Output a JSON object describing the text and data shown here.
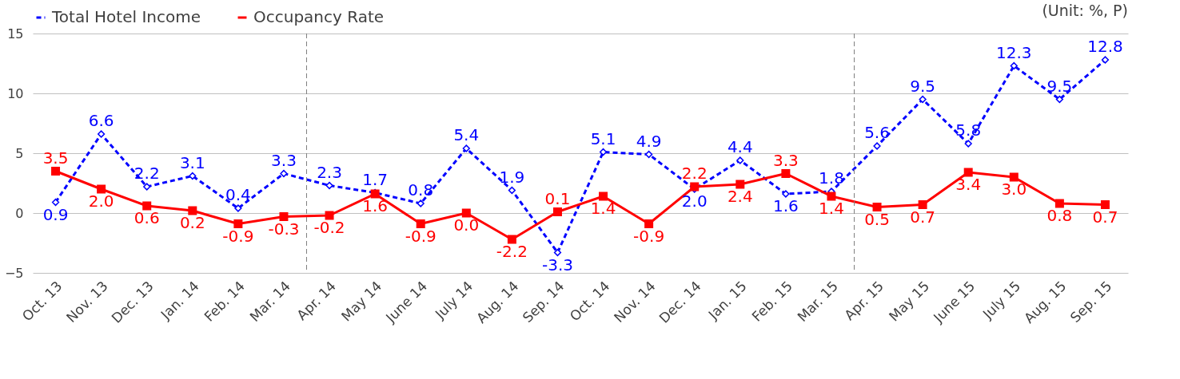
{
  "chart_data": {
    "type": "line",
    "categories": [
      "Oct. 13",
      "Nov. 13",
      "Dec. 13",
      "Jan. 14",
      "Feb. 14",
      "Mar. 14",
      "Apr. 14",
      "May 14",
      "June 14",
      "July 14",
      "Aug. 14",
      "Sep. 14",
      "Oct. 14",
      "Nov. 14",
      "Dec. 14",
      "Jan. 15",
      "Feb. 15",
      "Mar. 15",
      "Apr. 15",
      "May 15",
      "June 15",
      "July 15",
      "Aug. 15",
      "Sep. 15"
    ],
    "series": [
      {
        "name": "Total Hotel Income",
        "color": "#0000ff",
        "marker": "diamond",
        "line_style": "dashed",
        "values": [
          0.9,
          6.6,
          2.2,
          3.1,
          0.4,
          3.3,
          2.3,
          1.7,
          0.8,
          5.4,
          1.9,
          -3.3,
          5.1,
          4.9,
          2.0,
          4.4,
          1.6,
          1.8,
          5.6,
          9.5,
          5.8,
          12.3,
          9.5,
          12.8
        ],
        "value_labels": [
          "0.9",
          "6.6",
          "2.2",
          "3.1",
          "0.4",
          "3.3",
          "2.3",
          "1.7",
          "0.8",
          "5.4",
          "1.9",
          "-3.3",
          "5.1",
          "4.9",
          "2.0",
          "4.4",
          "1.6",
          "1.8",
          "5.6",
          "9.5",
          "5.8",
          "12.3",
          "9.5",
          "12.8"
        ]
      },
      {
        "name": "Occupancy Rate",
        "color": "#ff0000",
        "marker": "square",
        "line_style": "solid",
        "values": [
          3.5,
          2.0,
          0.6,
          0.2,
          -0.9,
          -0.3,
          -0.2,
          1.6,
          -0.9,
          0.0,
          -2.2,
          0.1,
          1.4,
          -0.9,
          2.2,
          2.4,
          3.3,
          1.4,
          0.5,
          0.7,
          3.4,
          3.0,
          0.8,
          0.7
        ],
        "value_labels": [
          "3.5",
          "2.0",
          "0.6",
          "0.2",
          "-0.9",
          "-0.3",
          "-0.2",
          "1.6",
          "-0.9",
          "0.0",
          "-2.2",
          "0.1",
          "1.4",
          "-0.9",
          "2.2",
          "2.4",
          "3.3",
          "1.4",
          "0.5",
          "0.7",
          "3.4",
          "3.0",
          "0.8",
          "0.7"
        ]
      }
    ],
    "ylim": [
      -5,
      15
    ],
    "yticks": [
      -5,
      0,
      5,
      10,
      15
    ],
    "grid": "y",
    "legend": "top left",
    "annotations": [
      "(Unit: %, P)"
    ],
    "ref_lines": [
      {
        "axis": "x",
        "value": "Apr. 14",
        "color": "#808080",
        "line_style": "dashed"
      },
      {
        "axis": "x",
        "value": "Apr. 15",
        "color": "#808080",
        "line_style": "dashed"
      }
    ]
  }
}
